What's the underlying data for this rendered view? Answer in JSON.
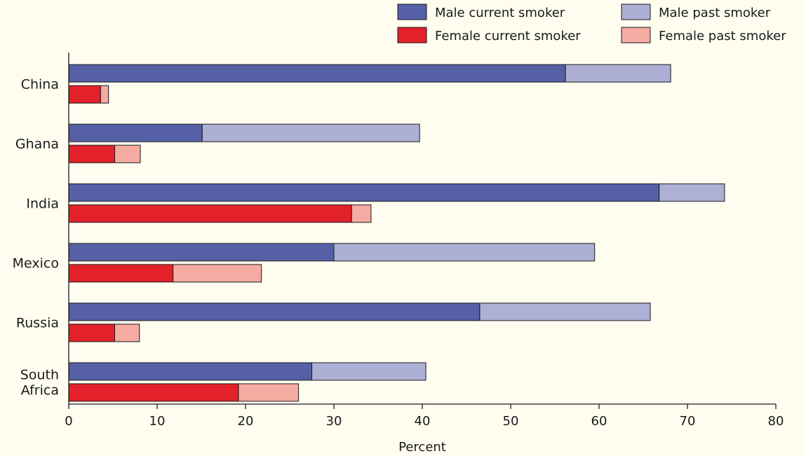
{
  "chart_data": {
    "type": "bar",
    "orientation": "horizontal",
    "stacked": true,
    "categories": [
      [
        "China"
      ],
      [
        "Ghana"
      ],
      [
        "India"
      ],
      [
        "Mexico"
      ],
      [
        "Russia"
      ],
      [
        "South",
        "Africa"
      ]
    ],
    "groups": [
      {
        "sex": "Male",
        "series": [
          {
            "name": "Male current smoker",
            "color": "#5560a6",
            "values": [
              56.2,
              15.1,
              66.8,
              30.0,
              46.5,
              27.5
            ]
          },
          {
            "name": "Male past smoker",
            "color": "#adb0d4",
            "values": [
              11.9,
              24.6,
              7.4,
              29.5,
              19.3,
              12.9
            ]
          }
        ]
      },
      {
        "sex": "Female",
        "series": [
          {
            "name": "Female current smoker",
            "color": "#e2212a",
            "values": [
              3.6,
              5.2,
              32.0,
              11.8,
              5.2,
              19.2
            ]
          },
          {
            "name": "Female past smoker",
            "color": "#f4aba1",
            "values": [
              0.9,
              2.9,
              2.2,
              10.0,
              2.8,
              6.8
            ]
          }
        ]
      }
    ],
    "legend_order": [
      "Male current smoker",
      "Male past smoker",
      "Female current smoker",
      "Female past smoker"
    ],
    "legend_position": "top-right",
    "xlabel": "Percent",
    "ylabel": "",
    "xlim": [
      0,
      80
    ],
    "xticks": [
      0,
      10,
      20,
      30,
      40,
      50,
      60,
      70,
      80
    ],
    "grid": false
  }
}
